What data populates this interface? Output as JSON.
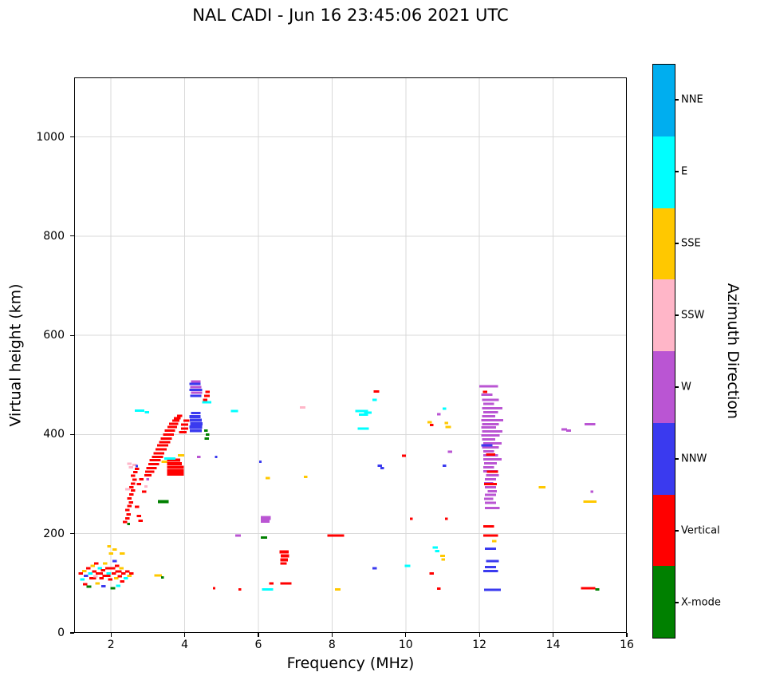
{
  "chart_data": {
    "type": "scatter",
    "title": "NAL CADI - Jun 16 23:45:06 2021 UTC",
    "xlabel": "Frequency (MHz)",
    "ylabel": "Virtual height (km)",
    "xlim": [
      1,
      16
    ],
    "ylim": [
      0,
      1120
    ],
    "x_ticks": [
      2,
      4,
      6,
      8,
      10,
      12,
      14,
      16
    ],
    "y_ticks": [
      0,
      200,
      400,
      600,
      800,
      1000
    ],
    "grid": true,
    "legend_title": "Azimuth Direction",
    "legend_position": "right-colorbar",
    "categories": [
      {
        "name": "NNE",
        "color": "#00AEEF"
      },
      {
        "name": "E",
        "color": "#00FFFF"
      },
      {
        "name": "SSE",
        "color": "#FFC800"
      },
      {
        "name": "SSW",
        "color": "#FFB6C8"
      },
      {
        "name": "W",
        "color": "#BA55D3"
      },
      {
        "name": "NNW",
        "color": "#3A3AEF"
      },
      {
        "name": "Vertical",
        "color": "#FF0000"
      },
      {
        "name": "X-mode",
        "color": "#008000"
      }
    ],
    "color_key": {
      "N": "NNE",
      "E": "E",
      "S": "SSE",
      "P": "SSW",
      "W": "W",
      "B": "NNW",
      "R": "Vertical",
      "G": "X-mode"
    },
    "point_format": "[freq_MHz, height_km, direction_code, width_MHz_optional, thickness_px_optional]",
    "points": [
      [
        1.18,
        120,
        "R"
      ],
      [
        1.22,
        108,
        "E"
      ],
      [
        1.28,
        125,
        "S"
      ],
      [
        1.3,
        98,
        "R"
      ],
      [
        1.32,
        115,
        "B"
      ],
      [
        1.38,
        130,
        "R"
      ],
      [
        1.4,
        93,
        "G"
      ],
      [
        1.44,
        120,
        "E"
      ],
      [
        1.5,
        110,
        "R",
        0.18
      ],
      [
        1.5,
        135,
        "S"
      ],
      [
        1.55,
        124,
        "R"
      ],
      [
        1.58,
        114,
        "P"
      ],
      [
        1.6,
        140,
        "R"
      ],
      [
        1.63,
        100,
        "S"
      ],
      [
        1.68,
        120,
        "R",
        0.2
      ],
      [
        1.7,
        130,
        "E"
      ],
      [
        1.74,
        110,
        "R"
      ],
      [
        1.78,
        126,
        "R"
      ],
      [
        1.8,
        94,
        "B"
      ],
      [
        1.84,
        140,
        "S"
      ],
      [
        1.88,
        115,
        "R",
        0.22
      ],
      [
        1.9,
        130,
        "R"
      ],
      [
        1.94,
        120,
        "E"
      ],
      [
        1.98,
        108,
        "R"
      ],
      [
        2.0,
        160,
        "S"
      ],
      [
        2.02,
        130,
        "R",
        0.2
      ],
      [
        2.05,
        90,
        "G"
      ],
      [
        2.08,
        120,
        "R"
      ],
      [
        2.1,
        145,
        "B"
      ],
      [
        2.1,
        168,
        "S"
      ],
      [
        2.14,
        110,
        "S"
      ],
      [
        2.16,
        135,
        "R"
      ],
      [
        2.2,
        124,
        "R",
        0.18
      ],
      [
        2.2,
        95,
        "E"
      ],
      [
        2.24,
        114,
        "R"
      ],
      [
        2.28,
        130,
        "S"
      ],
      [
        2.3,
        104,
        "R"
      ],
      [
        2.34,
        120,
        "R"
      ],
      [
        2.4,
        110,
        "E"
      ],
      [
        2.44,
        124,
        "R"
      ],
      [
        2.5,
        115,
        "S"
      ],
      [
        2.55,
        120,
        "R"
      ],
      [
        2.3,
        160,
        "S",
        0.14
      ],
      [
        1.95,
        175,
        "S",
        0.1
      ],
      [
        3.28,
        116,
        "S",
        0.2
      ],
      [
        3.4,
        112,
        "G",
        0.08
      ],
      [
        2.38,
        224,
        "R"
      ],
      [
        2.44,
        231,
        "R"
      ],
      [
        2.48,
        239,
        "R"
      ],
      [
        2.44,
        248,
        "R"
      ],
      [
        2.5,
        256,
        "R"
      ],
      [
        2.54,
        263,
        "R"
      ],
      [
        2.5,
        271,
        "R"
      ],
      [
        2.55,
        279,
        "R"
      ],
      [
        2.6,
        287,
        "R"
      ],
      [
        2.55,
        294,
        "R"
      ],
      [
        2.6,
        301,
        "R"
      ],
      [
        2.64,
        309,
        "R"
      ],
      [
        2.6,
        317,
        "R"
      ],
      [
        2.66,
        324,
        "R"
      ],
      [
        2.7,
        331,
        "R"
      ],
      [
        2.64,
        339,
        "P"
      ],
      [
        2.54,
        334,
        "P"
      ],
      [
        2.5,
        341,
        "P"
      ],
      [
        2.45,
        290,
        "P"
      ],
      [
        2.7,
        254,
        "R"
      ],
      [
        2.76,
        236,
        "R"
      ],
      [
        2.8,
        226,
        "R"
      ],
      [
        2.76,
        300,
        "R"
      ],
      [
        2.82,
        310,
        "R"
      ],
      [
        2.48,
        220,
        "G",
        0.08
      ],
      [
        2.7,
        336,
        "B",
        0.06
      ],
      [
        2.9,
        285,
        "R"
      ],
      [
        2.95,
        295,
        "P",
        0.08
      ],
      [
        2.78,
        448,
        "E",
        0.26
      ],
      [
        2.98,
        445,
        "E",
        0.12
      ],
      [
        3.0,
        318,
        "R",
        0.2
      ],
      [
        3.05,
        325,
        "R",
        0.24
      ],
      [
        3.1,
        332,
        "R",
        0.28
      ],
      [
        3.16,
        340,
        "R",
        0.3
      ],
      [
        3.2,
        348,
        "R",
        0.3
      ],
      [
        3.26,
        355,
        "R",
        0.3
      ],
      [
        3.3,
        362,
        "R",
        0.3
      ],
      [
        3.36,
        370,
        "R",
        0.3
      ],
      [
        3.4,
        378,
        "R",
        0.3
      ],
      [
        3.46,
        385,
        "R",
        0.3
      ],
      [
        3.5,
        392,
        "R",
        0.3
      ],
      [
        3.56,
        400,
        "R",
        0.3
      ],
      [
        3.6,
        408,
        "R",
        0.28
      ],
      [
        3.66,
        415,
        "R",
        0.26
      ],
      [
        3.7,
        422,
        "R",
        0.24
      ],
      [
        3.76,
        428,
        "R",
        0.2
      ],
      [
        3.8,
        433,
        "R",
        0.18
      ],
      [
        3.86,
        438,
        "R",
        0.14
      ],
      [
        3.75,
        320,
        "R",
        0.45,
        4
      ],
      [
        3.75,
        327,
        "R",
        0.45,
        4
      ],
      [
        3.75,
        334,
        "R",
        0.45,
        4
      ],
      [
        3.72,
        341,
        "R",
        0.4,
        4
      ],
      [
        3.7,
        348,
        "R",
        0.35,
        4
      ],
      [
        3.6,
        352,
        "E",
        0.3
      ],
      [
        3.45,
        345,
        "S",
        0.15
      ],
      [
        3.9,
        358,
        "S",
        0.18
      ],
      [
        3.42,
        265,
        "G",
        0.3,
        4
      ],
      [
        3.0,
        310,
        "W",
        0.08
      ],
      [
        3.95,
        405,
        "R",
        0.2
      ],
      [
        4.0,
        412,
        "R",
        0.2
      ],
      [
        4.0,
        420,
        "R",
        0.2
      ],
      [
        4.05,
        428,
        "R",
        0.16
      ],
      [
        4.3,
        408,
        "B",
        0.32,
        4
      ],
      [
        4.3,
        415,
        "B",
        0.34,
        4
      ],
      [
        4.32,
        422,
        "B",
        0.34,
        4
      ],
      [
        4.3,
        429,
        "B",
        0.32,
        4
      ],
      [
        4.28,
        436,
        "B",
        0.3,
        4
      ],
      [
        4.3,
        443,
        "B",
        0.26,
        3
      ],
      [
        4.3,
        478,
        "B",
        0.3,
        3
      ],
      [
        4.32,
        484,
        "W",
        0.3,
        3
      ],
      [
        4.3,
        490,
        "B",
        0.34,
        3
      ],
      [
        4.3,
        496,
        "W",
        0.3,
        3
      ],
      [
        4.28,
        502,
        "B",
        0.3,
        3
      ],
      [
        4.3,
        507,
        "W",
        0.26,
        3
      ],
      [
        4.38,
        355,
        "W",
        0.1
      ],
      [
        4.56,
        470,
        "R",
        0.12
      ],
      [
        4.6,
        478,
        "R",
        0.15
      ],
      [
        4.62,
        486,
        "R",
        0.12
      ],
      [
        4.6,
        465,
        "E",
        0.25
      ],
      [
        4.6,
        392,
        "G",
        0.12
      ],
      [
        4.62,
        400,
        "G",
        0.1
      ],
      [
        4.58,
        408,
        "G",
        0.1
      ],
      [
        4.85,
        355,
        "B",
        0.06
      ],
      [
        4.8,
        90,
        "R",
        0.06
      ],
      [
        5.35,
        447,
        "E",
        0.2
      ],
      [
        5.45,
        196,
        "W",
        0.15
      ],
      [
        5.5,
        88,
        "R",
        0.08
      ],
      [
        6.2,
        232,
        "W",
        0.28,
        5
      ],
      [
        6.18,
        225,
        "W",
        0.24,
        4
      ],
      [
        6.15,
        192,
        "G",
        0.18
      ],
      [
        6.25,
        312,
        "S",
        0.12
      ],
      [
        6.05,
        345,
        "B",
        0.06
      ],
      [
        6.25,
        88,
        "E",
        0.3
      ],
      [
        6.35,
        100,
        "R",
        0.12
      ],
      [
        6.7,
        163,
        "R",
        0.25,
        4
      ],
      [
        6.72,
        155,
        "R",
        0.22,
        4
      ],
      [
        6.7,
        147,
        "R",
        0.2,
        4
      ],
      [
        6.68,
        140,
        "R",
        0.18,
        3
      ],
      [
        6.75,
        100,
        "R",
        0.3,
        3
      ],
      [
        7.2,
        455,
        "P",
        0.15
      ],
      [
        7.28,
        315,
        "S",
        0.1
      ],
      [
        8.1,
        196,
        "R",
        0.45,
        3
      ],
      [
        8.15,
        88,
        "S",
        0.15
      ],
      [
        8.8,
        447,
        "E",
        0.35,
        3
      ],
      [
        8.97,
        444,
        "E",
        0.2
      ],
      [
        8.85,
        440,
        "E",
        0.25
      ],
      [
        8.85,
        412,
        "E",
        0.3
      ],
      [
        9.2,
        487,
        "R",
        0.15
      ],
      [
        9.15,
        470,
        "E",
        0.12
      ],
      [
        9.3,
        337,
        "B",
        0.12
      ],
      [
        9.36,
        332,
        "B",
        0.1
      ],
      [
        9.15,
        130,
        "B",
        0.12
      ],
      [
        9.95,
        357,
        "R",
        0.1
      ],
      [
        10.05,
        135,
        "E",
        0.15
      ],
      [
        10.15,
        230,
        "R",
        0.08
      ],
      [
        10.65,
        425,
        "S",
        0.12
      ],
      [
        10.7,
        419,
        "R",
        0.1
      ],
      [
        10.9,
        441,
        "W",
        0.1
      ],
      [
        10.8,
        172,
        "E",
        0.15
      ],
      [
        10.85,
        165,
        "E",
        0.12
      ],
      [
        10.7,
        120,
        "R",
        0.12
      ],
      [
        10.9,
        89,
        "R",
        0.1
      ],
      [
        11.0,
        155,
        "S",
        0.12
      ],
      [
        11.02,
        148,
        "S",
        0.1
      ],
      [
        11.05,
        337,
        "B",
        0.1
      ],
      [
        11.2,
        365,
        "W",
        0.12
      ],
      [
        11.1,
        230,
        "R",
        0.08
      ],
      [
        11.15,
        415,
        "S",
        0.15
      ],
      [
        11.1,
        423,
        "S",
        0.1
      ],
      [
        11.05,
        452,
        "E",
        0.1
      ],
      [
        12.25,
        497,
        "W",
        0.5
      ],
      [
        12.2,
        480,
        "W",
        0.3
      ],
      [
        12.3,
        470,
        "W",
        0.45
      ],
      [
        12.25,
        462,
        "W",
        0.3
      ],
      [
        12.35,
        453,
        "W",
        0.55
      ],
      [
        12.3,
        445,
        "W",
        0.4
      ],
      [
        12.25,
        437,
        "W",
        0.35
      ],
      [
        12.35,
        429,
        "W",
        0.6
      ],
      [
        12.3,
        421,
        "W",
        0.45
      ],
      [
        12.25,
        414,
        "W",
        0.4
      ],
      [
        12.35,
        406,
        "W",
        0.55
      ],
      [
        12.3,
        398,
        "W",
        0.5
      ],
      [
        12.25,
        390,
        "W",
        0.35
      ],
      [
        12.35,
        382,
        "W",
        0.5
      ],
      [
        12.3,
        374,
        "W",
        0.45
      ],
      [
        12.25,
        366,
        "W",
        0.3
      ],
      [
        12.3,
        358,
        "W",
        0.4
      ],
      [
        12.35,
        350,
        "W",
        0.5
      ],
      [
        12.3,
        342,
        "W",
        0.35
      ],
      [
        12.25,
        334,
        "W",
        0.3
      ],
      [
        12.3,
        326,
        "W",
        0.4
      ],
      [
        12.35,
        318,
        "W",
        0.35
      ],
      [
        12.3,
        310,
        "W",
        0.3
      ],
      [
        12.25,
        302,
        "W",
        0.25
      ],
      [
        12.3,
        294,
        "W",
        0.3
      ],
      [
        12.35,
        286,
        "W",
        0.25
      ],
      [
        12.3,
        278,
        "W",
        0.3
      ],
      [
        12.25,
        270,
        "W",
        0.25
      ],
      [
        12.3,
        262,
        "W",
        0.3
      ],
      [
        12.35,
        252,
        "W",
        0.4
      ],
      [
        12.15,
        486,
        "R",
        0.12
      ],
      [
        12.3,
        360,
        "R",
        0.25
      ],
      [
        12.35,
        325,
        "R",
        0.3
      ],
      [
        12.3,
        300,
        "R",
        0.35
      ],
      [
        12.25,
        215,
        "R",
        0.3
      ],
      [
        12.3,
        196,
        "R",
        0.4
      ],
      [
        12.2,
        378,
        "B",
        0.3
      ],
      [
        12.3,
        170,
        "B",
        0.3
      ],
      [
        12.35,
        145,
        "B",
        0.35
      ],
      [
        12.3,
        133,
        "B",
        0.3
      ],
      [
        12.3,
        125,
        "B",
        0.4
      ],
      [
        12.35,
        87,
        "B",
        0.45
      ],
      [
        12.4,
        185,
        "S",
        0.12
      ],
      [
        13.7,
        294,
        "S",
        0.18
      ],
      [
        14.3,
        410,
        "W",
        0.15
      ],
      [
        14.42,
        408,
        "W",
        0.12
      ],
      [
        15.0,
        421,
        "W",
        0.3
      ],
      [
        15.0,
        265,
        "S",
        0.35
      ],
      [
        14.95,
        90,
        "R",
        0.4
      ],
      [
        15.2,
        88,
        "G",
        0.1
      ],
      [
        15.05,
        285,
        "W",
        0.08
      ]
    ]
  }
}
